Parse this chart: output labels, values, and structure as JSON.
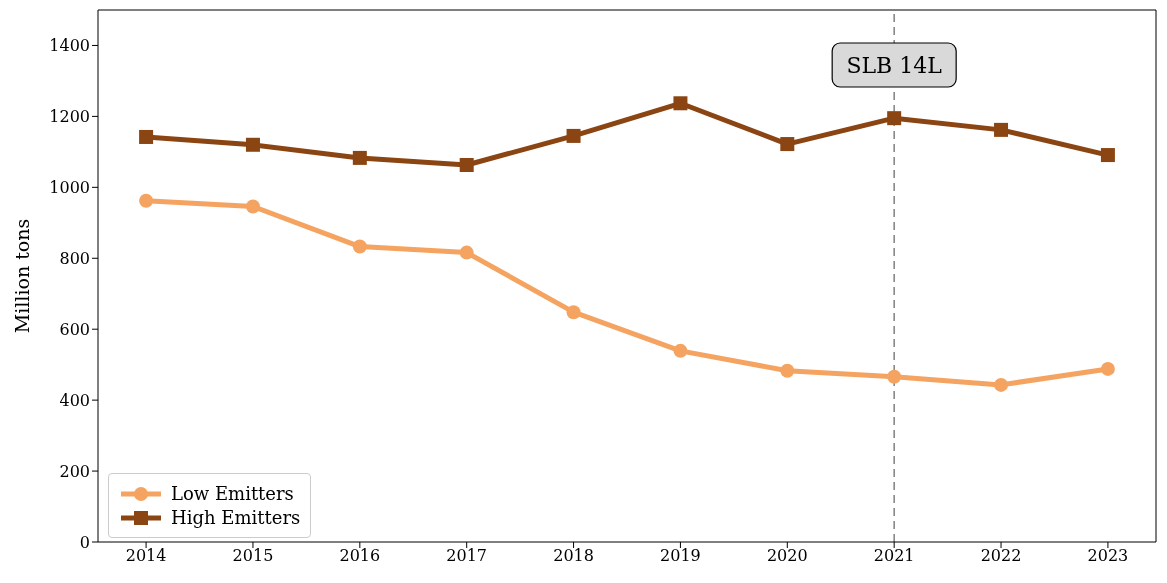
{
  "chart_data": {
    "type": "line",
    "ylabel": "Million tons",
    "x": [
      2014,
      2015,
      2016,
      2017,
      2018,
      2019,
      2020,
      2021,
      2022,
      2023
    ],
    "series": [
      {
        "name": "Low Emitters",
        "color": "#f4a460",
        "marker": "circle",
        "values": [
          962,
          946,
          833,
          816,
          648,
          539,
          483,
          466,
          443,
          488
        ]
      },
      {
        "name": "High Emitters",
        "color": "#8b4513",
        "marker": "square",
        "values": [
          1142,
          1120,
          1083,
          1063,
          1145,
          1237,
          1122,
          1195,
          1162,
          1091
        ]
      }
    ],
    "xlim": [
      2013.55,
      2023.45
    ],
    "xticks": [
      2014,
      2015,
      2016,
      2017,
      2018,
      2019,
      2020,
      2021,
      2022,
      2023
    ],
    "ylim": [
      0,
      1500
    ],
    "yticks": [
      0,
      200,
      400,
      600,
      800,
      1000,
      1200,
      1400
    ],
    "ref_lines": [
      {
        "axis": "x",
        "value": 2021,
        "label": "SLB 14L",
        "color": "#808080",
        "line_style": "dashed"
      }
    ],
    "grid": false,
    "legend": "bottom left",
    "line_style": "solid"
  }
}
